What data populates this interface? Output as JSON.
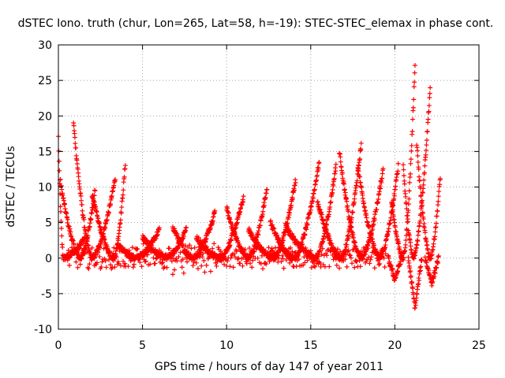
{
  "chart_data": {
    "type": "scatter",
    "title": "dSTEC Iono. truth (chur, Lon=265, Lat=58, h=-19): STEC-STEC_elemax in phase cont.",
    "xlabel": "GPS time / hours of day 147 of year 2011",
    "ylabel": "dSTEC  / TECUs",
    "xlim": [
      0,
      25
    ],
    "ylim": [
      -10,
      30
    ],
    "xticks": [
      0,
      5,
      10,
      15,
      20,
      25
    ],
    "yticks": [
      -10,
      -5,
      0,
      5,
      10,
      15,
      20,
      25,
      30
    ],
    "grid": true,
    "marker": "plus",
    "series_color": "#ff0000",
    "arcs": [
      {
        "t0": 0.0,
        "t1": 1.6,
        "tmin": 0.3,
        "peak_left": 17.0,
        "peak_right": 3.0
      },
      {
        "t0": 0.1,
        "t1": 2.2,
        "tmin": 1.3,
        "peak_left": 11.0,
        "peak_right": 10.0
      },
      {
        "t0": 0.9,
        "t1": 3.4,
        "tmin": 2.0,
        "peak_left": 19.0,
        "peak_right": 11.5
      },
      {
        "t0": 2.0,
        "t1": 4.0,
        "tmin": 3.3,
        "peak_left": 9.0,
        "peak_right": 14.0
      },
      {
        "t0": 3.5,
        "t1": 6.0,
        "tmin": 4.6,
        "peak_left": 2.0,
        "peak_right": 4.0
      },
      {
        "t0": 5.0,
        "t1": 7.6,
        "tmin": 6.4,
        "peak_left": 3.0,
        "peak_right": 4.0
      },
      {
        "t0": 6.8,
        "t1": 9.3,
        "tmin": 8.0,
        "peak_left": 4.5,
        "peak_right": 6.5
      },
      {
        "t0": 8.2,
        "t1": 11.0,
        "tmin": 9.6,
        "peak_left": 3.0,
        "peak_right": 8.5
      },
      {
        "t0": 10.0,
        "t1": 12.4,
        "tmin": 11.3,
        "peak_left": 7.0,
        "peak_right": 10.0
      },
      {
        "t0": 11.3,
        "t1": 14.1,
        "tmin": 12.8,
        "peak_left": 4.0,
        "peak_right": 11.0
      },
      {
        "t0": 12.6,
        "t1": 15.5,
        "tmin": 14.0,
        "peak_left": 5.0,
        "peak_right": 13.5
      },
      {
        "t0": 13.5,
        "t1": 16.5,
        "tmin": 15.3,
        "peak_left": 4.5,
        "peak_right": 13.0
      },
      {
        "t0": 15.4,
        "t1": 18.0,
        "tmin": 16.8,
        "peak_left": 8.0,
        "peak_right": 16.0
      },
      {
        "t0": 16.7,
        "t1": 19.3,
        "tmin": 18.0,
        "peak_left": 15.0,
        "peak_right": 12.5
      },
      {
        "t0": 17.8,
        "t1": 20.2,
        "tmin": 19.1,
        "peak_left": 13.0,
        "peak_right": 13.0
      },
      {
        "t0": 19.8,
        "t1": 21.2,
        "tmin": 20.5,
        "peak_left": 8.0,
        "peak_right": 27.5
      },
      {
        "t0": 20.5,
        "t1": 22.1,
        "tmin": 21.1,
        "peak_left": 13.0,
        "peak_right": 24.0
      },
      {
        "t0": 21.3,
        "t1": 22.7,
        "tmin": 22.1,
        "peak_left": 16.0,
        "peak_right": 11.5
      }
    ],
    "dips": [
      {
        "t0": 19.6,
        "t1": 20.4,
        "min": -3.0
      },
      {
        "t0": 20.8,
        "t1": 21.6,
        "min": -7.0
      },
      {
        "t0": 21.8,
        "t1": 22.6,
        "min": -3.5
      }
    ]
  }
}
